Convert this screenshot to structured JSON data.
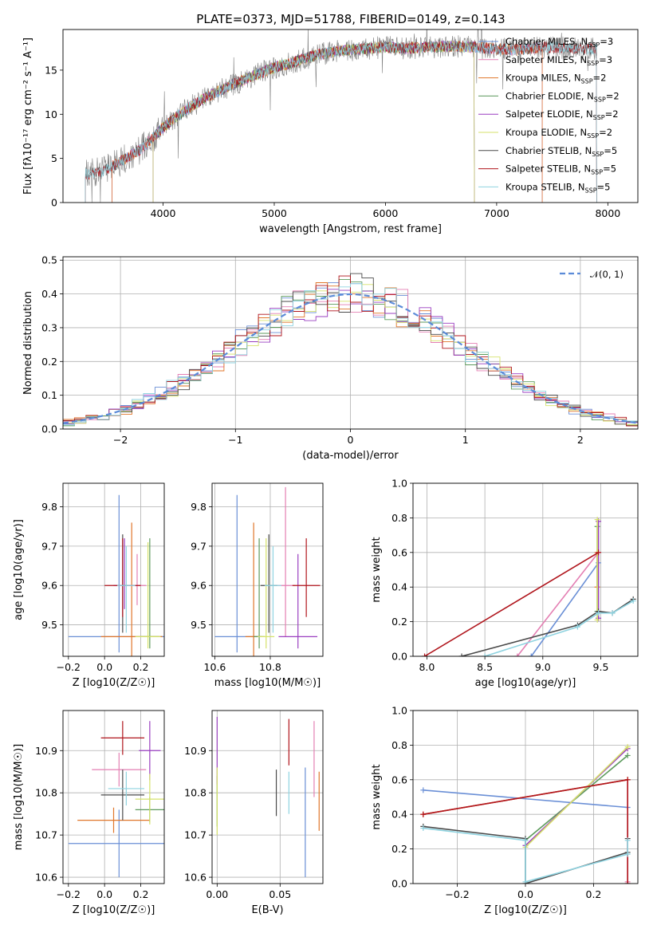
{
  "figure": {
    "title": "PLATE=0373, MJD=51788, FIBERID=0149, z=0.143",
    "colors": {
      "Chabrier MILES": "#6a8fd6",
      "Salpeter MILES": "#e47fb3",
      "Kroupa MILES": "#e0762a",
      "Chabrier ELODIE": "#5c9a5c",
      "Salpeter ELODIE": "#9a3fc0",
      "Kroupa ELODIE": "#d6e26a",
      "Chabrier STELIB": "#4a4a4a",
      "Salpeter STELIB": "#b0151c",
      "Kroupa STELIB": "#8fd3e0",
      "data": "#808080",
      "normal": "#5b8bd8"
    }
  },
  "chart_data": [
    {
      "id": "spectrum",
      "type": "line",
      "title": "PLATE=0373, MJD=51788, FIBERID=0149, z=0.143",
      "xlabel": "wavelength [Angstrom, rest frame]",
      "ylabel": "Flux [fλ10⁻¹⁷ erg cm⁻² s⁻¹ A⁻¹]",
      "xlim": [
        3100,
        8270
      ],
      "ylim": [
        0,
        19.6
      ],
      "xticks": [
        4000,
        5000,
        6000,
        7000,
        8000
      ],
      "yticks": [
        0,
        5,
        10,
        15
      ],
      "grid": false,
      "legend_position": "top-right",
      "legend": [
        "Chabrier MILES, N_SSP=3",
        "Salpeter MILES, N_SSP=3",
        "Kroupa MILES, N_SSP=2",
        "Chabrier ELODIE, N_SSP=2",
        "Salpeter ELODIE, N_SSP=2",
        "Kroupa ELODIE, N_SSP=2",
        "Chabrier STELIB, N_SSP=5",
        "Salpeter STELIB, N_SSP=5",
        "Kroupa STELIB, N_SSP=5"
      ],
      "legend_parts": [
        {
          "pre": "Chabrier MILES, N",
          "sub": "SSP",
          "post": "=3"
        },
        {
          "pre": "Salpeter MILES, N",
          "sub": "SSP",
          "post": "=3"
        },
        {
          "pre": "Kroupa MILES, N",
          "sub": "SSP",
          "post": "=2"
        },
        {
          "pre": "Chabrier ELODIE, N",
          "sub": "SSP",
          "post": "=2"
        },
        {
          "pre": "Salpeter ELODIE, N",
          "sub": "SSP",
          "post": "=2"
        },
        {
          "pre": "Kroupa ELODIE, N",
          "sub": "SSP",
          "post": "=2"
        },
        {
          "pre": "Chabrier STELIB, N",
          "sub": "SSP",
          "post": "=5"
        },
        {
          "pre": "Salpeter STELIB, N",
          "sub": "SSP",
          "post": "=5"
        },
        {
          "pre": "Kroupa STELIB, N",
          "sub": "SSP",
          "post": "=5"
        }
      ],
      "continuum": {
        "x": [
          3300,
          3450,
          3600,
          3800,
          4000,
          4200,
          4400,
          4600,
          4800,
          5000,
          5200,
          5400,
          5600,
          5800,
          6000,
          6200,
          6400,
          6600,
          6800,
          7000,
          7200,
          7400,
          7600,
          7800
        ],
        "y": [
          3.2,
          3.5,
          4.5,
          6.0,
          8.5,
          10.5,
          12.0,
          13.2,
          14.3,
          15.3,
          16.0,
          16.8,
          17.2,
          17.4,
          17.6,
          17.5,
          17.6,
          17.7,
          17.6,
          17.4,
          17.3,
          17.6,
          17.5,
          17.4
        ]
      },
      "data_range": [
        3300,
        7900
      ],
      "model_ranges": {
        "MILES": [
          3540,
          7410
        ],
        "ELODIE": [
          3910,
          6800
        ],
        "STELIB": [
          3300,
          7900
        ]
      }
    },
    {
      "id": "residuals",
      "type": "histogram",
      "xlabel": "(data-model)/error",
      "ylabel": "Normed distribution",
      "xlim": [
        -2.5,
        2.5
      ],
      "ylim": [
        0,
        0.51
      ],
      "xticks": [
        -2,
        -1,
        0,
        1,
        2
      ],
      "yticks": [
        0.0,
        0.1,
        0.2,
        0.3,
        0.4,
        0.5
      ],
      "grid": true,
      "legend_position": "top-right",
      "legend": [
        "𝒩(0, 1)"
      ],
      "bin_width": 0.1,
      "normal": {
        "mean": 0,
        "sigma": 1
      }
    },
    {
      "id": "age-vs-Z",
      "type": "errorbar",
      "xlabel": "Z [log10(Z/Z☉)]",
      "ylabel": "age  [log10(age/yr)]",
      "xlim": [
        -0.23,
        0.33
      ],
      "ylim": [
        9.42,
        9.86
      ],
      "xticks": [
        -0.2,
        0.0,
        0.2
      ],
      "yticks": [
        9.5,
        9.6,
        9.7,
        9.8
      ],
      "grid": true,
      "points": [
        {
          "model": "Chabrier MILES",
          "x": 0.08,
          "xerr": 0.28,
          "y": 9.47,
          "yerr": [
            0.04,
            0.36
          ]
        },
        {
          "model": "Salpeter MILES",
          "x": 0.18,
          "xerr": 0.05,
          "y": 9.6,
          "yerr": [
            0.05,
            0.08
          ]
        },
        {
          "model": "Kroupa MILES",
          "x": 0.15,
          "xerr": 0.17,
          "y": 9.47,
          "yerr": [
            0.06,
            0.29
          ]
        },
        {
          "model": "Chabrier ELODIE",
          "x": 0.25,
          "xerr": 0.05,
          "y": 9.47,
          "yerr": [
            0.03,
            0.25
          ]
        },
        {
          "model": "Salpeter ELODIE",
          "x": 0.11,
          "xerr": 0.06,
          "y": 9.6,
          "yerr": [
            0.06,
            0.12
          ]
        },
        {
          "model": "Kroupa ELODIE",
          "x": 0.24,
          "xerr": 0.07,
          "y": 9.47,
          "yerr": [
            0.03,
            0.24
          ]
        },
        {
          "model": "Chabrier STELIB",
          "x": 0.1,
          "xerr": 0.03,
          "y": 9.6,
          "yerr": [
            0.12,
            0.13
          ]
        },
        {
          "model": "Salpeter STELIB",
          "x": 0.1,
          "xerr": 0.1,
          "y": 9.6,
          "yerr": [
            0.08,
            0.12
          ]
        },
        {
          "model": "Kroupa STELIB",
          "x": 0.12,
          "xerr": 0.05,
          "y": 9.6,
          "yerr": [
            0.12,
            0.1
          ]
        }
      ]
    },
    {
      "id": "age-vs-mass",
      "type": "errorbar",
      "xlabel": "mass [log10(M/M☉)]",
      "ylabel": "",
      "xlim": [
        10.59,
        10.99
      ],
      "ylim": [
        9.42,
        9.86
      ],
      "xticks": [
        10.6,
        10.8
      ],
      "yticks": [
        9.5,
        9.6,
        9.7,
        9.8
      ],
      "grid": true,
      "points": [
        {
          "model": "Chabrier MILES",
          "x": 10.68,
          "xerr": 0.08,
          "y": 9.47,
          "yerr": [
            0.04,
            0.36
          ]
        },
        {
          "model": "Salpeter MILES",
          "x": 10.855,
          "xerr": 0.035,
          "y": 9.6,
          "yerr": [
            0.13,
            0.25
          ]
        },
        {
          "model": "Kroupa MILES",
          "x": 10.74,
          "xerr": 0.03,
          "y": 9.47,
          "yerr": [
            0.06,
            0.29
          ]
        },
        {
          "model": "Chabrier ELODIE",
          "x": 10.76,
          "xerr": 0.02,
          "y": 9.47,
          "yerr": [
            0.03,
            0.25
          ]
        },
        {
          "model": "Salpeter ELODIE",
          "x": 10.9,
          "xerr": 0.07,
          "y": 9.47,
          "yerr": [
            0.03,
            0.21
          ]
        },
        {
          "model": "Kroupa ELODIE",
          "x": 10.785,
          "xerr": 0.03,
          "y": 9.47,
          "yerr": [
            0.03,
            0.25
          ]
        },
        {
          "model": "Chabrier STELIB",
          "x": 10.795,
          "xerr": 0.03,
          "y": 9.6,
          "yerr": [
            0.12,
            0.13
          ]
        },
        {
          "model": "Salpeter STELIB",
          "x": 10.93,
          "xerr": 0.05,
          "y": 9.6,
          "yerr": [
            0.08,
            0.12
          ]
        },
        {
          "model": "Kroupa STELIB",
          "x": 10.81,
          "xerr": 0.03,
          "y": 9.6,
          "yerr": [
            0.12,
            0.1
          ]
        }
      ]
    },
    {
      "id": "weight-vs-age",
      "type": "line",
      "xlabel": "age  [log10(age/yr)]",
      "ylabel": "mass weight",
      "xlim": [
        7.88,
        9.82
      ],
      "ylim": [
        0,
        1
      ],
      "xticks": [
        8.0,
        8.5,
        9.0,
        9.5
      ],
      "yticks": [
        0.0,
        0.2,
        0.4,
        0.6,
        0.8,
        1.0
      ],
      "grid": true,
      "series": [
        {
          "model": "Chabrier MILES",
          "x": [
            8.9,
            9.48
          ],
          "y": [
            0.0,
            0.54
          ]
        },
        {
          "model": "Salpeter MILES",
          "x": [
            8.78,
            9.48
          ],
          "y": [
            0.0,
            0.6
          ]
        },
        {
          "model": "Kroupa MILES",
          "x": [
            9.47,
            9.47
          ],
          "y": [
            0.6,
            0.4
          ]
        },
        {
          "model": "Chabrier ELODIE",
          "x": [
            9.47,
            9.47
          ],
          "y": [
            0.75,
            0.26
          ]
        },
        {
          "model": "Salpeter ELODIE",
          "x": [
            9.48,
            9.48
          ],
          "y": [
            0.78,
            0.22
          ]
        },
        {
          "model": "Kroupa ELODIE",
          "x": [
            9.47,
            9.47
          ],
          "y": [
            0.79,
            0.21
          ]
        },
        {
          "model": "Chabrier STELIB",
          "x": [
            8.3,
            9.3,
            9.48,
            9.6,
            9.78
          ],
          "y": [
            0.0,
            0.18,
            0.26,
            0.25,
            0.33
          ]
        },
        {
          "model": "Salpeter STELIB",
          "x": [
            7.98,
            9.48
          ],
          "y": [
            0.0,
            0.6
          ]
        },
        {
          "model": "Kroupa STELIB",
          "x": [
            8.5,
            9.3,
            9.48,
            9.6,
            9.78
          ],
          "y": [
            0.0,
            0.17,
            0.25,
            0.25,
            0.32
          ]
        }
      ]
    },
    {
      "id": "mass-vs-Z",
      "type": "errorbar",
      "xlabel": "Z [log10(Z/Z☉)]",
      "ylabel": "mass [log10(M/M☉)]",
      "xlim": [
        -0.23,
        0.33
      ],
      "ylim": [
        10.585,
        10.995
      ],
      "xticks": [
        -0.2,
        0.0,
        0.2
      ],
      "yticks": [
        10.6,
        10.7,
        10.8,
        10.9
      ],
      "grid": true,
      "points": [
        {
          "model": "Chabrier MILES",
          "x": 0.08,
          "xerr": 0.28,
          "y": 10.68,
          "yerr": [
            0.08,
            0.08
          ]
        },
        {
          "model": "Salpeter MILES",
          "x": 0.08,
          "xerr": 0.15,
          "y": 10.855,
          "yerr": [
            0.04,
            0.04
          ]
        },
        {
          "model": "Kroupa MILES",
          "x": 0.05,
          "xerr": 0.2,
          "y": 10.735,
          "yerr": [
            0.03,
            0.03
          ]
        },
        {
          "model": "Chabrier ELODIE",
          "x": 0.25,
          "xerr": 0.08,
          "y": 10.76,
          "yerr": [
            0.03,
            0.03
          ]
        },
        {
          "model": "Salpeter ELODIE",
          "x": 0.25,
          "xerr": 0.06,
          "y": 10.9,
          "yerr": [
            0.07,
            0.07
          ]
        },
        {
          "model": "Kroupa ELODIE",
          "x": 0.25,
          "xerr": 0.08,
          "y": 10.785,
          "yerr": [
            0.06,
            0.06
          ]
        },
        {
          "model": "Chabrier STELIB",
          "x": 0.1,
          "xerr": 0.12,
          "y": 10.795,
          "yerr": [
            0.06,
            0.06
          ]
        },
        {
          "model": "Salpeter STELIB",
          "x": 0.1,
          "xerr": 0.12,
          "y": 10.93,
          "yerr": [
            0.04,
            0.04
          ]
        },
        {
          "model": "Kroupa STELIB",
          "x": 0.12,
          "xerr": 0.1,
          "y": 10.81,
          "yerr": [
            0.04,
            0.04
          ]
        }
      ]
    },
    {
      "id": "mass-vs-EBV",
      "type": "errorbar",
      "xlabel": "E(B-V)",
      "ylabel": "",
      "xlim": [
        -0.004,
        0.084
      ],
      "ylim": [
        10.585,
        10.995
      ],
      "xticks": [
        0.0,
        0.05
      ],
      "yticks": [
        10.6,
        10.7,
        10.8,
        10.9
      ],
      "grid": true,
      "points": [
        {
          "model": "Chabrier MILES",
          "x": 0.07,
          "xerr": 0,
          "y": 10.7,
          "yerr": [
            0.1,
            0.16
          ]
        },
        {
          "model": "Salpeter MILES",
          "x": 0.077,
          "xerr": 0,
          "y": 10.88,
          "yerr": [
            0.09,
            0.09
          ]
        },
        {
          "model": "Kroupa MILES",
          "x": 0.081,
          "xerr": 0,
          "y": 10.78,
          "yerr": [
            0.07,
            0.07
          ]
        },
        {
          "model": "Chabrier ELODIE",
          "x": 0.0,
          "xerr": 0,
          "y": 10.78,
          "yerr": [
            0.06,
            0.06
          ]
        },
        {
          "model": "Salpeter ELODIE",
          "x": 0.0,
          "xerr": 0,
          "y": 10.9,
          "yerr": [
            0.08,
            0.08
          ]
        },
        {
          "model": "Kroupa ELODIE",
          "x": 0.0,
          "xerr": 0,
          "y": 10.78,
          "yerr": [
            0.08,
            0.08
          ]
        },
        {
          "model": "Chabrier STELIB",
          "x": 0.047,
          "xerr": 0,
          "y": 10.8,
          "yerr": [
            0.055,
            0.055
          ]
        },
        {
          "model": "Salpeter STELIB",
          "x": 0.057,
          "xerr": 0,
          "y": 10.92,
          "yerr": [
            0.055,
            0.055
          ]
        },
        {
          "model": "Kroupa STELIB",
          "x": 0.057,
          "xerr": 0,
          "y": 10.8,
          "yerr": [
            0.05,
            0.05
          ]
        }
      ]
    },
    {
      "id": "weight-vs-Z",
      "type": "line",
      "xlabel": "Z [log10(Z/Z☉)]",
      "ylabel": "mass weight",
      "xlim": [
        -0.33,
        0.33
      ],
      "ylim": [
        0,
        1
      ],
      "xticks": [
        -0.2,
        0.0,
        0.2
      ],
      "yticks": [
        0.0,
        0.2,
        0.4,
        0.6,
        0.8,
        1.0
      ],
      "grid": true,
      "series": [
        {
          "model": "Chabrier MILES",
          "x": [
            -0.3,
            0.3
          ],
          "y": [
            0.54,
            0.44
          ]
        },
        {
          "model": "Salpeter MILES",
          "x": [
            -0.3,
            0.3,
            0.3
          ],
          "y": [
            0.4,
            0.6,
            0.01
          ]
        },
        {
          "model": "Kroupa MILES",
          "x": [
            -0.3,
            0.3
          ],
          "y": [
            0.4,
            0.6
          ]
        },
        {
          "model": "Chabrier ELODIE",
          "x": [
            0.0,
            0.3
          ],
          "y": [
            0.25,
            0.74
          ]
        },
        {
          "model": "Salpeter ELODIE",
          "x": [
            0.0,
            0.3
          ],
          "y": [
            0.22,
            0.78
          ]
        },
        {
          "model": "Kroupa ELODIE",
          "x": [
            0.0,
            0.3
          ],
          "y": [
            0.21,
            0.79
          ]
        },
        {
          "model": "Chabrier STELIB",
          "x": [
            -0.3,
            0.0,
            0.0,
            0.3,
            0.3
          ],
          "y": [
            0.33,
            0.26,
            0.0,
            0.18,
            0.26
          ]
        },
        {
          "model": "Salpeter STELIB",
          "x": [
            -0.3,
            0.3,
            0.3
          ],
          "y": [
            0.4,
            0.6,
            0.0
          ]
        },
        {
          "model": "Kroupa STELIB",
          "x": [
            -0.3,
            0.0,
            0.0,
            0.3,
            0.3
          ],
          "y": [
            0.32,
            0.25,
            0.01,
            0.17,
            0.25
          ]
        }
      ]
    }
  ]
}
